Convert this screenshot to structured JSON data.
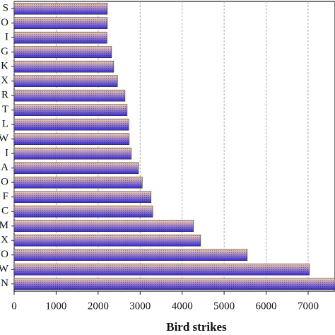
{
  "chart_data": {
    "type": "bar",
    "orientation": "horizontal",
    "x_label": "Bird strikes",
    "categories": [
      "S",
      "O",
      "I",
      "G",
      "K",
      "X",
      "R",
      "T",
      "L",
      "W",
      "I",
      "A",
      "O",
      "F",
      "C",
      "M",
      "X",
      "O",
      "W",
      "N"
    ],
    "values": [
      2220,
      2220,
      2210,
      2320,
      2370,
      2460,
      2640,
      2690,
      2730,
      2740,
      2790,
      2960,
      3050,
      3260,
      3300,
      4270,
      4440,
      5550,
      7030,
      7640
    ],
    "colors": [
      "#f5cfae",
      "#3a2cd8"
    ],
    "xlim": [
      0,
      7640
    ],
    "xticks": [
      0,
      1000,
      2000,
      3000,
      4000,
      5000,
      6000,
      7000
    ],
    "grid": true
  }
}
